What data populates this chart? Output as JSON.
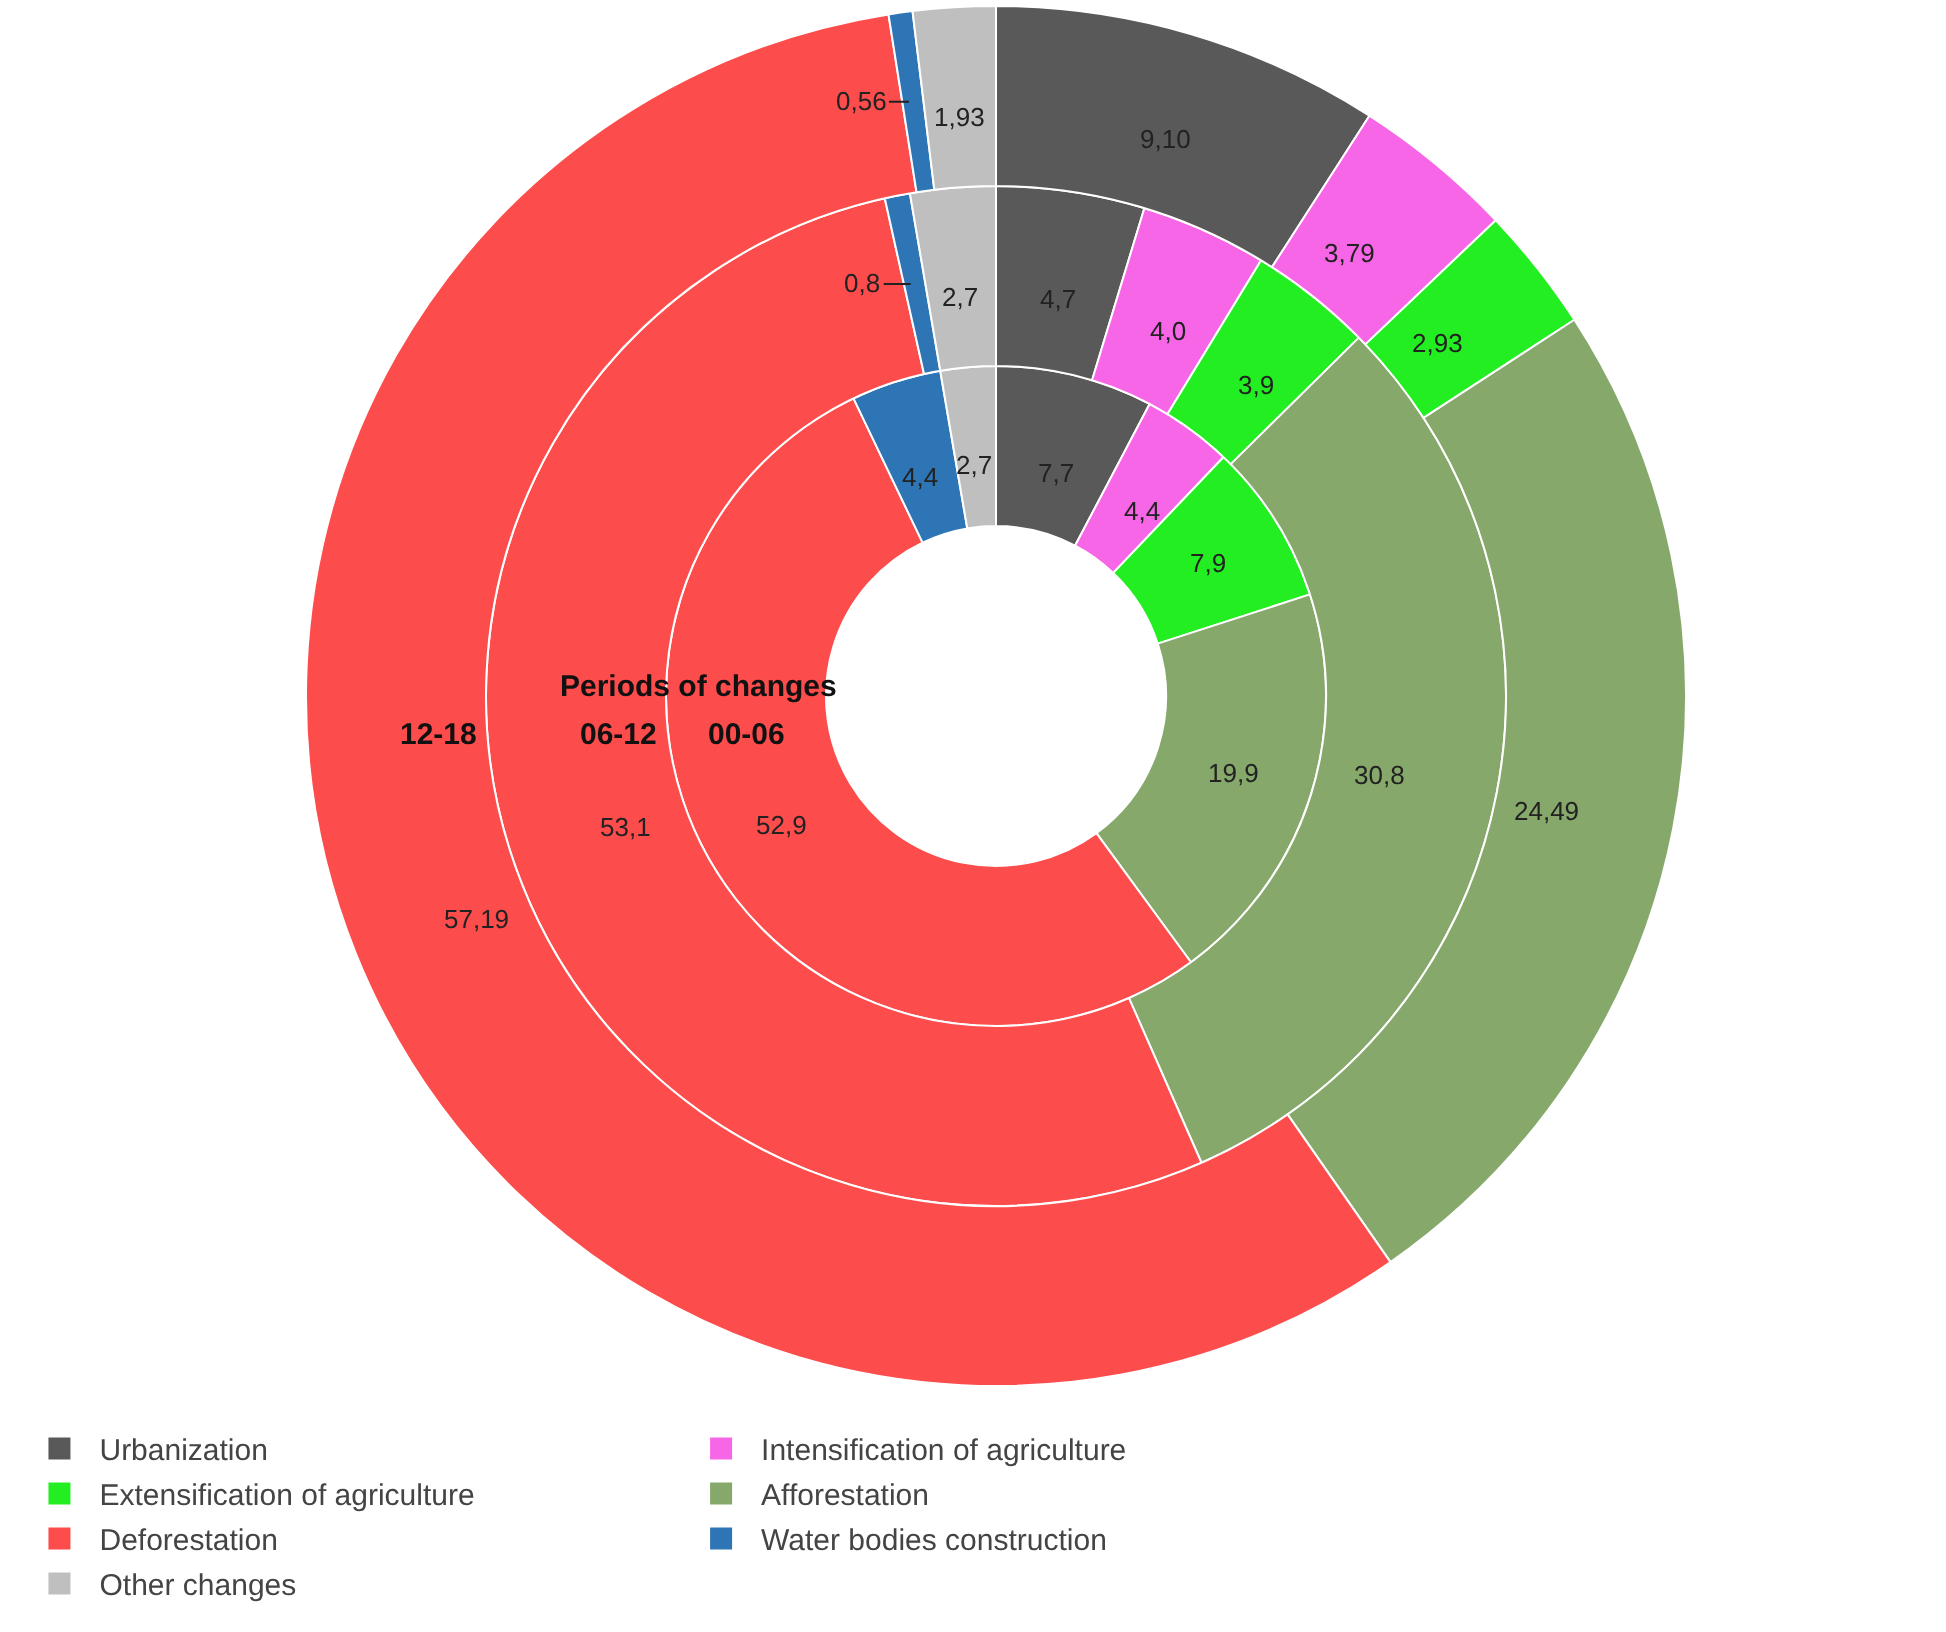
{
  "chart_data": {
    "type": "donut",
    "categories": [
      "Urbanization",
      "Intensification of agriculture",
      "Extensification of agriculture",
      "Afforestation",
      "Deforestation",
      "Water bodies construction",
      "Other changes"
    ],
    "colors": [
      "#595959",
      "#f766e6",
      "#22ee22",
      "#86a86a",
      "#fd4c4c",
      "#2e75b6",
      "#bfbfbf"
    ],
    "series": [
      {
        "name": "00-06",
        "values": [
          7.7,
          4.4,
          7.9,
          19.9,
          52.9,
          4.4,
          2.7
        ],
        "value_labels": [
          "7,7",
          "4,4",
          "7,9",
          "19,9",
          "52,9",
          "4,4",
          "2,7"
        ]
      },
      {
        "name": "06-12",
        "values": [
          4.7,
          4.0,
          3.9,
          30.8,
          53.1,
          0.8,
          2.7
        ],
        "value_labels": [
          "4,7",
          "4,0",
          "3,9",
          "30,8",
          "53,1",
          "0,8",
          "2,7"
        ]
      },
      {
        "name": "12-18",
        "values": [
          9.1,
          3.79,
          2.93,
          24.49,
          57.19,
          0.56,
          1.93
        ],
        "value_labels": [
          "9,10",
          "3,79",
          "2,93",
          "24,49",
          "57,19",
          "0,56",
          "1,93"
        ]
      }
    ],
    "annotations": [
      "Periods of changes"
    ],
    "legend": "bottom"
  }
}
